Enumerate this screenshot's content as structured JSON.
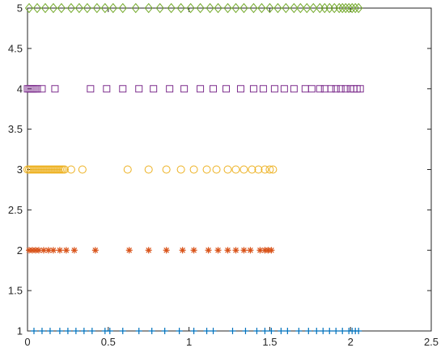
{
  "chart_data": {
    "type": "scatter",
    "xlim": [
      0,
      2.5
    ],
    "ylim": [
      1,
      5
    ],
    "x_ticks": [
      "0",
      "0.5",
      "1",
      "1.5",
      "2",
      "2.5"
    ],
    "y_ticks": [
      "1",
      "1.5",
      "2",
      "2.5",
      "3",
      "3.5",
      "4",
      "4.5",
      "5"
    ],
    "grid": false,
    "legend": "none",
    "series": [
      {
        "marker": "plus",
        "color": "#0072BD",
        "y": 1,
        "x": [
          0.04,
          0.09,
          0.14,
          0.2,
          0.25,
          0.3,
          0.35,
          0.4,
          0.48,
          0.51,
          0.59,
          0.69,
          0.77,
          0.85,
          0.94,
          1.03,
          1.11,
          1.15,
          1.27,
          1.35,
          1.42,
          1.47,
          1.51,
          1.57,
          1.61,
          1.68,
          1.74,
          1.79,
          1.83,
          1.87,
          1.91,
          1.95,
          1.99,
          2.01,
          2.03,
          2.05
        ]
      },
      {
        "marker": "asterisk",
        "color": "#D95319",
        "y": 2,
        "x": [
          0.01,
          0.03,
          0.05,
          0.07,
          0.1,
          0.13,
          0.16,
          0.2,
          0.24,
          0.29,
          0.42,
          0.63,
          0.75,
          0.86,
          0.96,
          1.03,
          1.12,
          1.18,
          1.24,
          1.29,
          1.34,
          1.38,
          1.44,
          1.47,
          1.49,
          1.51
        ]
      },
      {
        "marker": "circle",
        "color": "#EDB120",
        "y": 3,
        "x": [
          0.0,
          0.01,
          0.02,
          0.03,
          0.04,
          0.05,
          0.06,
          0.07,
          0.08,
          0.09,
          0.1,
          0.11,
          0.12,
          0.13,
          0.14,
          0.15,
          0.16,
          0.17,
          0.18,
          0.19,
          0.2,
          0.21,
          0.22,
          0.23,
          0.27,
          0.34,
          0.62,
          0.75,
          0.86,
          0.95,
          1.03,
          1.11,
          1.17,
          1.24,
          1.29,
          1.34,
          1.39,
          1.43,
          1.47,
          1.5,
          1.52
        ]
      },
      {
        "marker": "square",
        "color": "#7E2F8E",
        "y": 4,
        "x": [
          0.0,
          0.01,
          0.02,
          0.03,
          0.04,
          0.05,
          0.06,
          0.09,
          0.17,
          0.39,
          0.49,
          0.59,
          0.69,
          0.78,
          0.88,
          0.97,
          1.07,
          1.15,
          1.23,
          1.32,
          1.4,
          1.46,
          1.53,
          1.59,
          1.65,
          1.72,
          1.76,
          1.81,
          1.84,
          1.88,
          1.91,
          1.94,
          1.97,
          2.0,
          2.02,
          2.04,
          2.06
        ]
      },
      {
        "marker": "diamond",
        "color": "#77AC30",
        "y": 5,
        "x": [
          0.01,
          0.06,
          0.11,
          0.16,
          0.21,
          0.27,
          0.32,
          0.37,
          0.43,
          0.48,
          0.53,
          0.59,
          0.67,
          0.75,
          0.82,
          0.89,
          0.95,
          1.01,
          1.07,
          1.13,
          1.18,
          1.24,
          1.29,
          1.34,
          1.4,
          1.45,
          1.5,
          1.55,
          1.6,
          1.65,
          1.69,
          1.73,
          1.77,
          1.81,
          1.84,
          1.87,
          1.9,
          1.93,
          1.95,
          1.97,
          1.99,
          2.01,
          2.03,
          2.05
        ]
      }
    ]
  }
}
